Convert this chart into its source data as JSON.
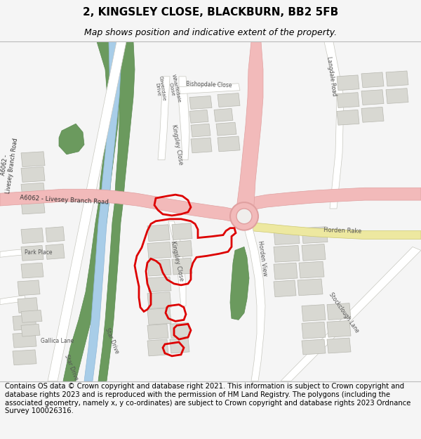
{
  "title": "2, KINGSLEY CLOSE, BLACKBURN, BB2 5FB",
  "subtitle": "Map shows position and indicative extent of the property.",
  "footer": "Contains OS data © Crown copyright and database right 2021. This information is subject to Crown copyright and database rights 2023 and is reproduced with the permission of HM Land Registry. The polygons (including the associated geometry, namely x, y co-ordinates) are subject to Crown copyright and database rights 2023 Ordnance Survey 100026316.",
  "bg_color": "#f5f5f5",
  "map_bg": "#f0eeec",
  "title_fontsize": 11,
  "subtitle_fontsize": 9,
  "footer_fontsize": 7.2,
  "title_bold": true
}
